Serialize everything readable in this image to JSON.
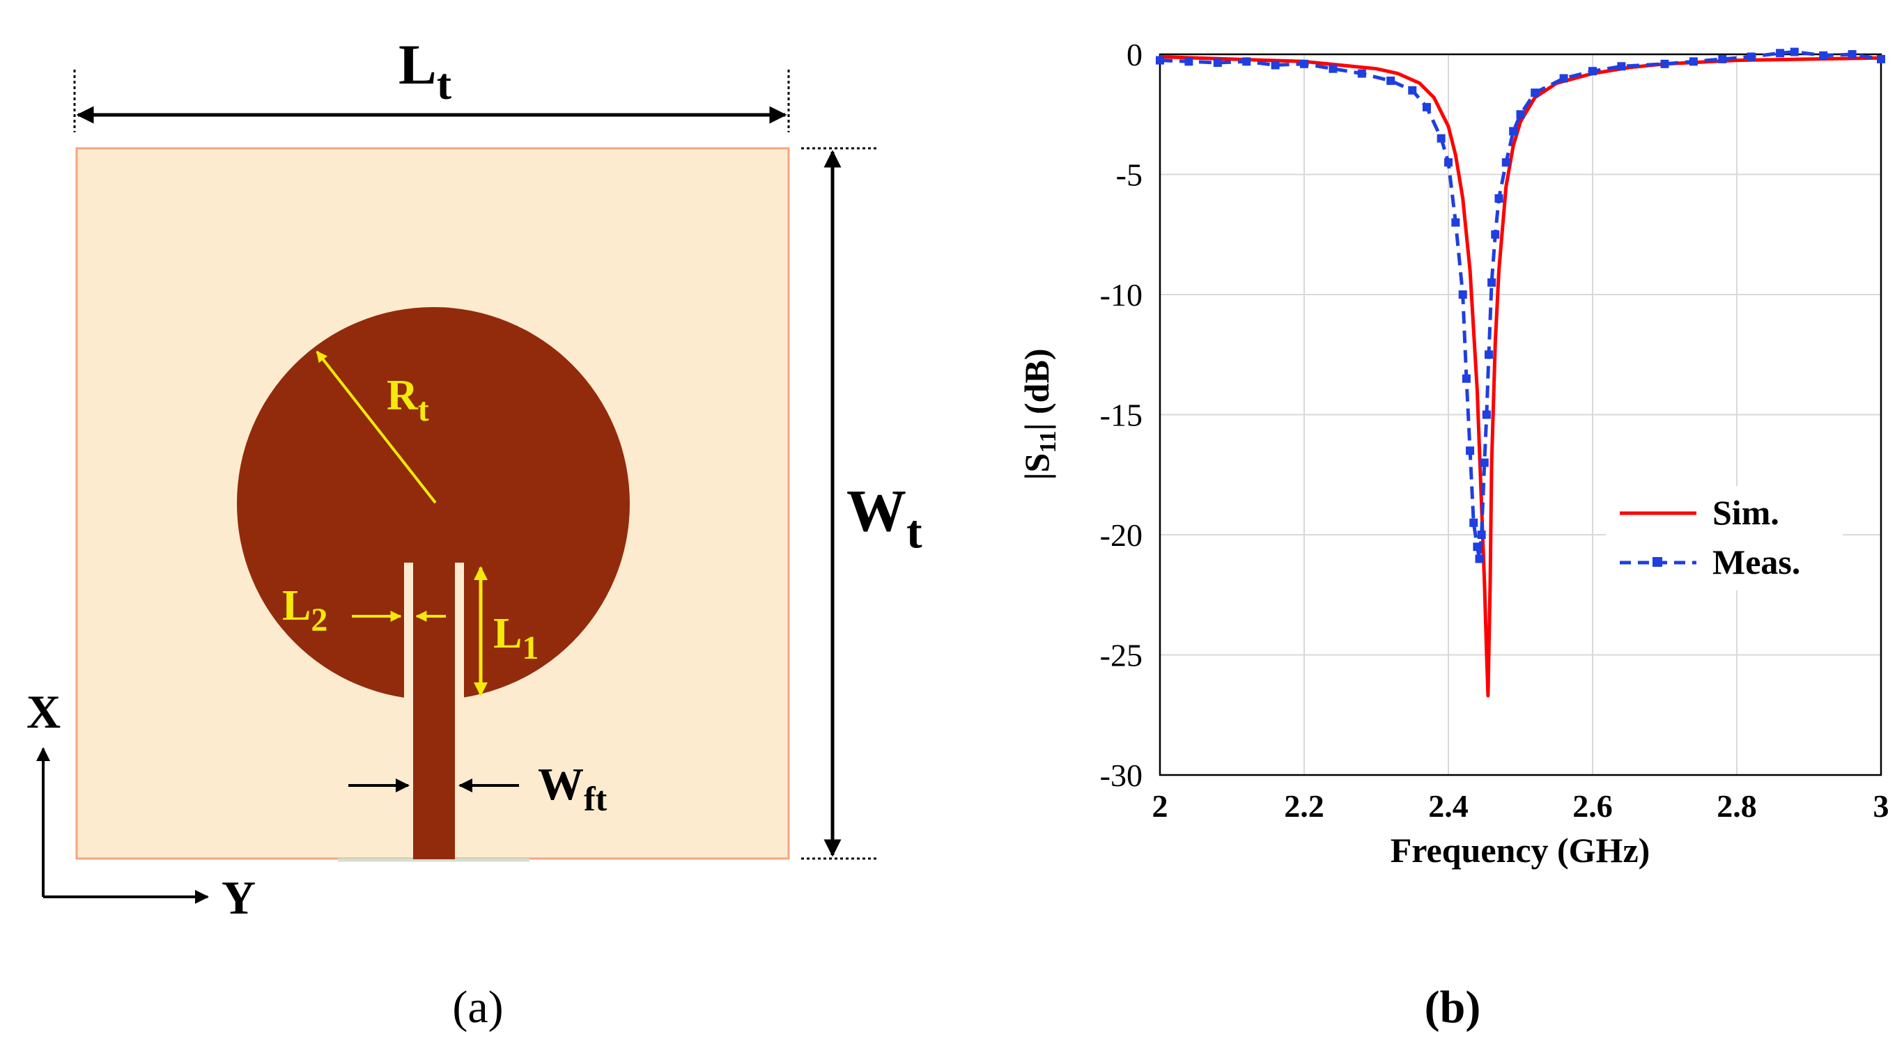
{
  "panel_a": {
    "caption": "(a)",
    "dim_Lt": {
      "main": "L",
      "sub": "t"
    },
    "dim_Wt": {
      "main": "W",
      "sub": "t"
    },
    "dim_Rt": {
      "main": "R",
      "sub": "t"
    },
    "dim_L2": {
      "main": "L",
      "sub": "2"
    },
    "dim_L1": {
      "main": "L",
      "sub": "1"
    },
    "dim_Wft": {
      "main": "W",
      "sub": "ft"
    },
    "axis_x": "X",
    "axis_y": "Y",
    "colors": {
      "substrate": "#FDEBD0",
      "substrate_border": "#F4A582",
      "patch": "#922B0C",
      "annotation": "#F5E90A",
      "dimension": "#000000"
    }
  },
  "panel_b": {
    "caption": "(b)"
  },
  "chart_data": {
    "type": "line",
    "title": "",
    "xlabel": "Frequency (GHz)",
    "ylabel": {
      "prefix": "|S",
      "sub": "11",
      "suffix": "| (dB)"
    },
    "xlim": [
      2,
      3
    ],
    "ylim": [
      -30,
      0
    ],
    "xticks": [
      2,
      2.2,
      2.4,
      2.6,
      2.8,
      3
    ],
    "xtick_labels": [
      "2",
      "2.2",
      "2.4",
      "2.6",
      "2.8",
      "3"
    ],
    "yticks": [
      0,
      -5,
      -10,
      -15,
      -20,
      -25,
      -30
    ],
    "ytick_labels": [
      "0",
      "-5",
      "-10",
      "-15",
      "-20",
      "-25",
      "-30"
    ],
    "grid": true,
    "legend_position": "center-right",
    "series": [
      {
        "name": "Sim.",
        "color": "#FF0000",
        "style": "solid",
        "x": [
          2.0,
          2.05,
          2.1,
          2.15,
          2.2,
          2.25,
          2.3,
          2.33,
          2.36,
          2.38,
          2.4,
          2.41,
          2.42,
          2.43,
          2.44,
          2.445,
          2.45,
          2.453,
          2.455,
          2.458,
          2.46,
          2.465,
          2.47,
          2.48,
          2.49,
          2.5,
          2.52,
          2.55,
          2.6,
          2.65,
          2.7,
          2.8,
          2.9,
          3.0
        ],
        "y": [
          -0.1,
          -0.15,
          -0.2,
          -0.25,
          -0.3,
          -0.45,
          -0.6,
          -0.8,
          -1.2,
          -1.8,
          -3.0,
          -4.2,
          -6.0,
          -9.0,
          -14.0,
          -18.0,
          -22.0,
          -25.0,
          -26.7,
          -22.0,
          -17.0,
          -12.0,
          -9.0,
          -5.5,
          -3.8,
          -2.8,
          -1.8,
          -1.2,
          -0.8,
          -0.55,
          -0.4,
          -0.25,
          -0.2,
          -0.15
        ]
      },
      {
        "name": "Meas.",
        "color": "#1F3FE0",
        "style": "dashed",
        "marker": "square",
        "x": [
          2.0,
          2.04,
          2.08,
          2.12,
          2.16,
          2.2,
          2.24,
          2.28,
          2.32,
          2.35,
          2.37,
          2.39,
          2.4,
          2.41,
          2.42,
          2.425,
          2.43,
          2.435,
          2.44,
          2.443,
          2.446,
          2.45,
          2.453,
          2.456,
          2.46,
          2.465,
          2.47,
          2.48,
          2.49,
          2.5,
          2.52,
          2.56,
          2.6,
          2.64,
          2.7,
          2.74,
          2.78,
          2.82,
          2.86,
          2.88,
          2.92,
          2.96,
          3.0
        ],
        "y": [
          -0.25,
          -0.3,
          -0.35,
          -0.3,
          -0.45,
          -0.4,
          -0.6,
          -0.8,
          -1.1,
          -1.5,
          -2.2,
          -3.5,
          -4.5,
          -7.0,
          -10.0,
          -13.5,
          -16.5,
          -19.5,
          -20.5,
          -21.0,
          -20.0,
          -17.0,
          -15.0,
          -12.5,
          -9.5,
          -7.5,
          -6.0,
          -4.5,
          -3.2,
          -2.5,
          -1.6,
          -1.0,
          -0.7,
          -0.5,
          -0.4,
          -0.3,
          -0.2,
          -0.1,
          0.05,
          0.1,
          -0.05,
          0.0,
          -0.2
        ]
      }
    ]
  }
}
